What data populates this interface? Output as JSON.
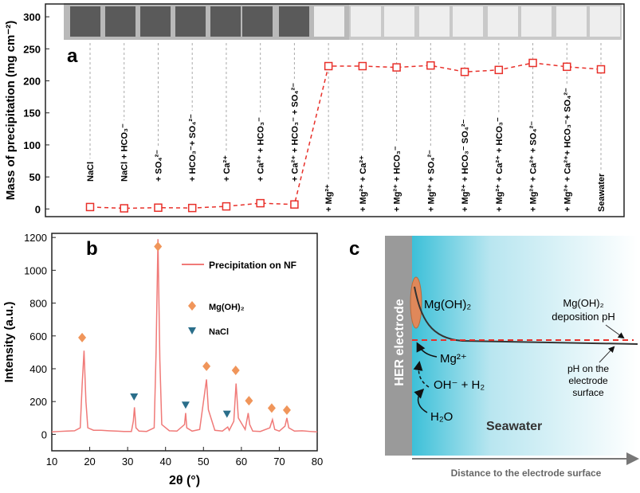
{
  "chart_data": [
    {
      "type": "line",
      "label": "a",
      "y_label": "Mass of precipitation (mg cm⁻²)",
      "categories": [
        "NaCl",
        "NaCl + HCO₃⁻",
        "+ SO₄²⁻",
        "+ HCO₃⁻+ SO₄²⁻",
        "+ Ca²⁺",
        "+ Ca²⁺ + HCO₃⁻",
        "+ Ca²⁺ + HCO₃⁻ + SO₄²⁻",
        "+ Mg²⁺",
        "+ Mg²⁺ + Ca²⁺",
        "+ Mg²⁺ + HCO₃⁻",
        "+ Mg²⁺ + SO₄²⁻",
        "+ Mg²⁺ + HCO₃⁻ SO₄²⁻",
        "+ Mg²⁺ + Ca²⁺ + HCO₃⁻",
        "+ Mg²⁺ + Ca²⁺ + SO₄²⁻",
        "+ Mg²⁺ + Ca²⁺+ HCO₃⁻+ SO₄²⁻",
        "Seawater"
      ],
      "values": [
        3,
        1,
        2,
        1.5,
        4,
        9,
        7,
        223,
        223,
        221,
        224,
        214,
        217,
        228,
        222,
        218
      ],
      "color": "#e8302a",
      "ylim": [
        -12,
        320
      ],
      "yticks": [
        0,
        50,
        100,
        150,
        200,
        250,
        300
      ]
    },
    {
      "type": "line",
      "label": "b",
      "x_label": "2θ (°)",
      "y_label": "Intensity (a.u.)",
      "xlim": [
        10,
        80
      ],
      "xticks": [
        10,
        20,
        30,
        40,
        50,
        60,
        70,
        80
      ],
      "ylim": [
        -100,
        1225
      ],
      "yticks": [
        0,
        200,
        400,
        600,
        800,
        1000,
        1200
      ],
      "series": [
        {
          "name": "Precipitation on NF",
          "color": "#f07a78",
          "x": [
            10,
            12,
            14,
            16,
            17.5,
            18,
            18.5,
            19,
            19.5,
            21,
            23,
            25,
            27,
            29,
            31,
            31.5,
            31.8,
            32.2,
            33,
            35,
            37,
            37.5,
            38,
            38.5,
            39,
            41,
            43,
            45,
            45.3,
            45.6,
            47,
            49,
            50.3,
            50.8,
            51.3,
            53,
            55,
            56.4,
            56.8,
            58,
            58.6,
            59.2,
            61,
            61.8,
            62.2,
            63,
            65,
            67.5,
            68.2,
            68.8,
            70,
            71.5,
            72,
            72.5,
            74,
            76,
            78,
            80
          ],
          "values": [
            15,
            18,
            20,
            22,
            40,
            300,
            510,
            200,
            40,
            25,
            25,
            22,
            20,
            18,
            18,
            80,
            165,
            40,
            20,
            18,
            40,
            500,
            1190,
            450,
            60,
            22,
            20,
            60,
            130,
            40,
            20,
            30,
            250,
            335,
            150,
            25,
            20,
            45,
            25,
            80,
            310,
            100,
            30,
            130,
            60,
            20,
            18,
            40,
            90,
            30,
            20,
            50,
            100,
            40,
            20,
            22,
            18,
            15
          ]
        },
        {
          "name": "Mg(OH)₂",
          "color": "#f0955a",
          "marker": "diamond",
          "x": [
            18,
            38,
            50.8,
            58.5,
            62,
            68,
            72
          ],
          "values": [
            590,
            1145,
            415,
            390,
            205,
            160,
            148
          ]
        },
        {
          "name": "NaCl",
          "color": "#2a6e8a",
          "marker": "triangle",
          "x": [
            31.7,
            45.3,
            56.2
          ],
          "values": [
            230,
            180,
            125
          ]
        }
      ]
    }
  ],
  "diagram": {
    "label": "c",
    "electrode": "HER electrode",
    "deposit": "Mg(OH)₂",
    "deposition_ph": [
      "Mg(OH)₂",
      "deposition pH"
    ],
    "ion": "Mg²⁺",
    "reaction": "OH⁻ + H₂",
    "water": "H₂O",
    "surface_ph": [
      "pH on the",
      "electrode",
      "surface"
    ],
    "medium": "Seawater",
    "x_axis": "Distance to the electrode surface"
  }
}
